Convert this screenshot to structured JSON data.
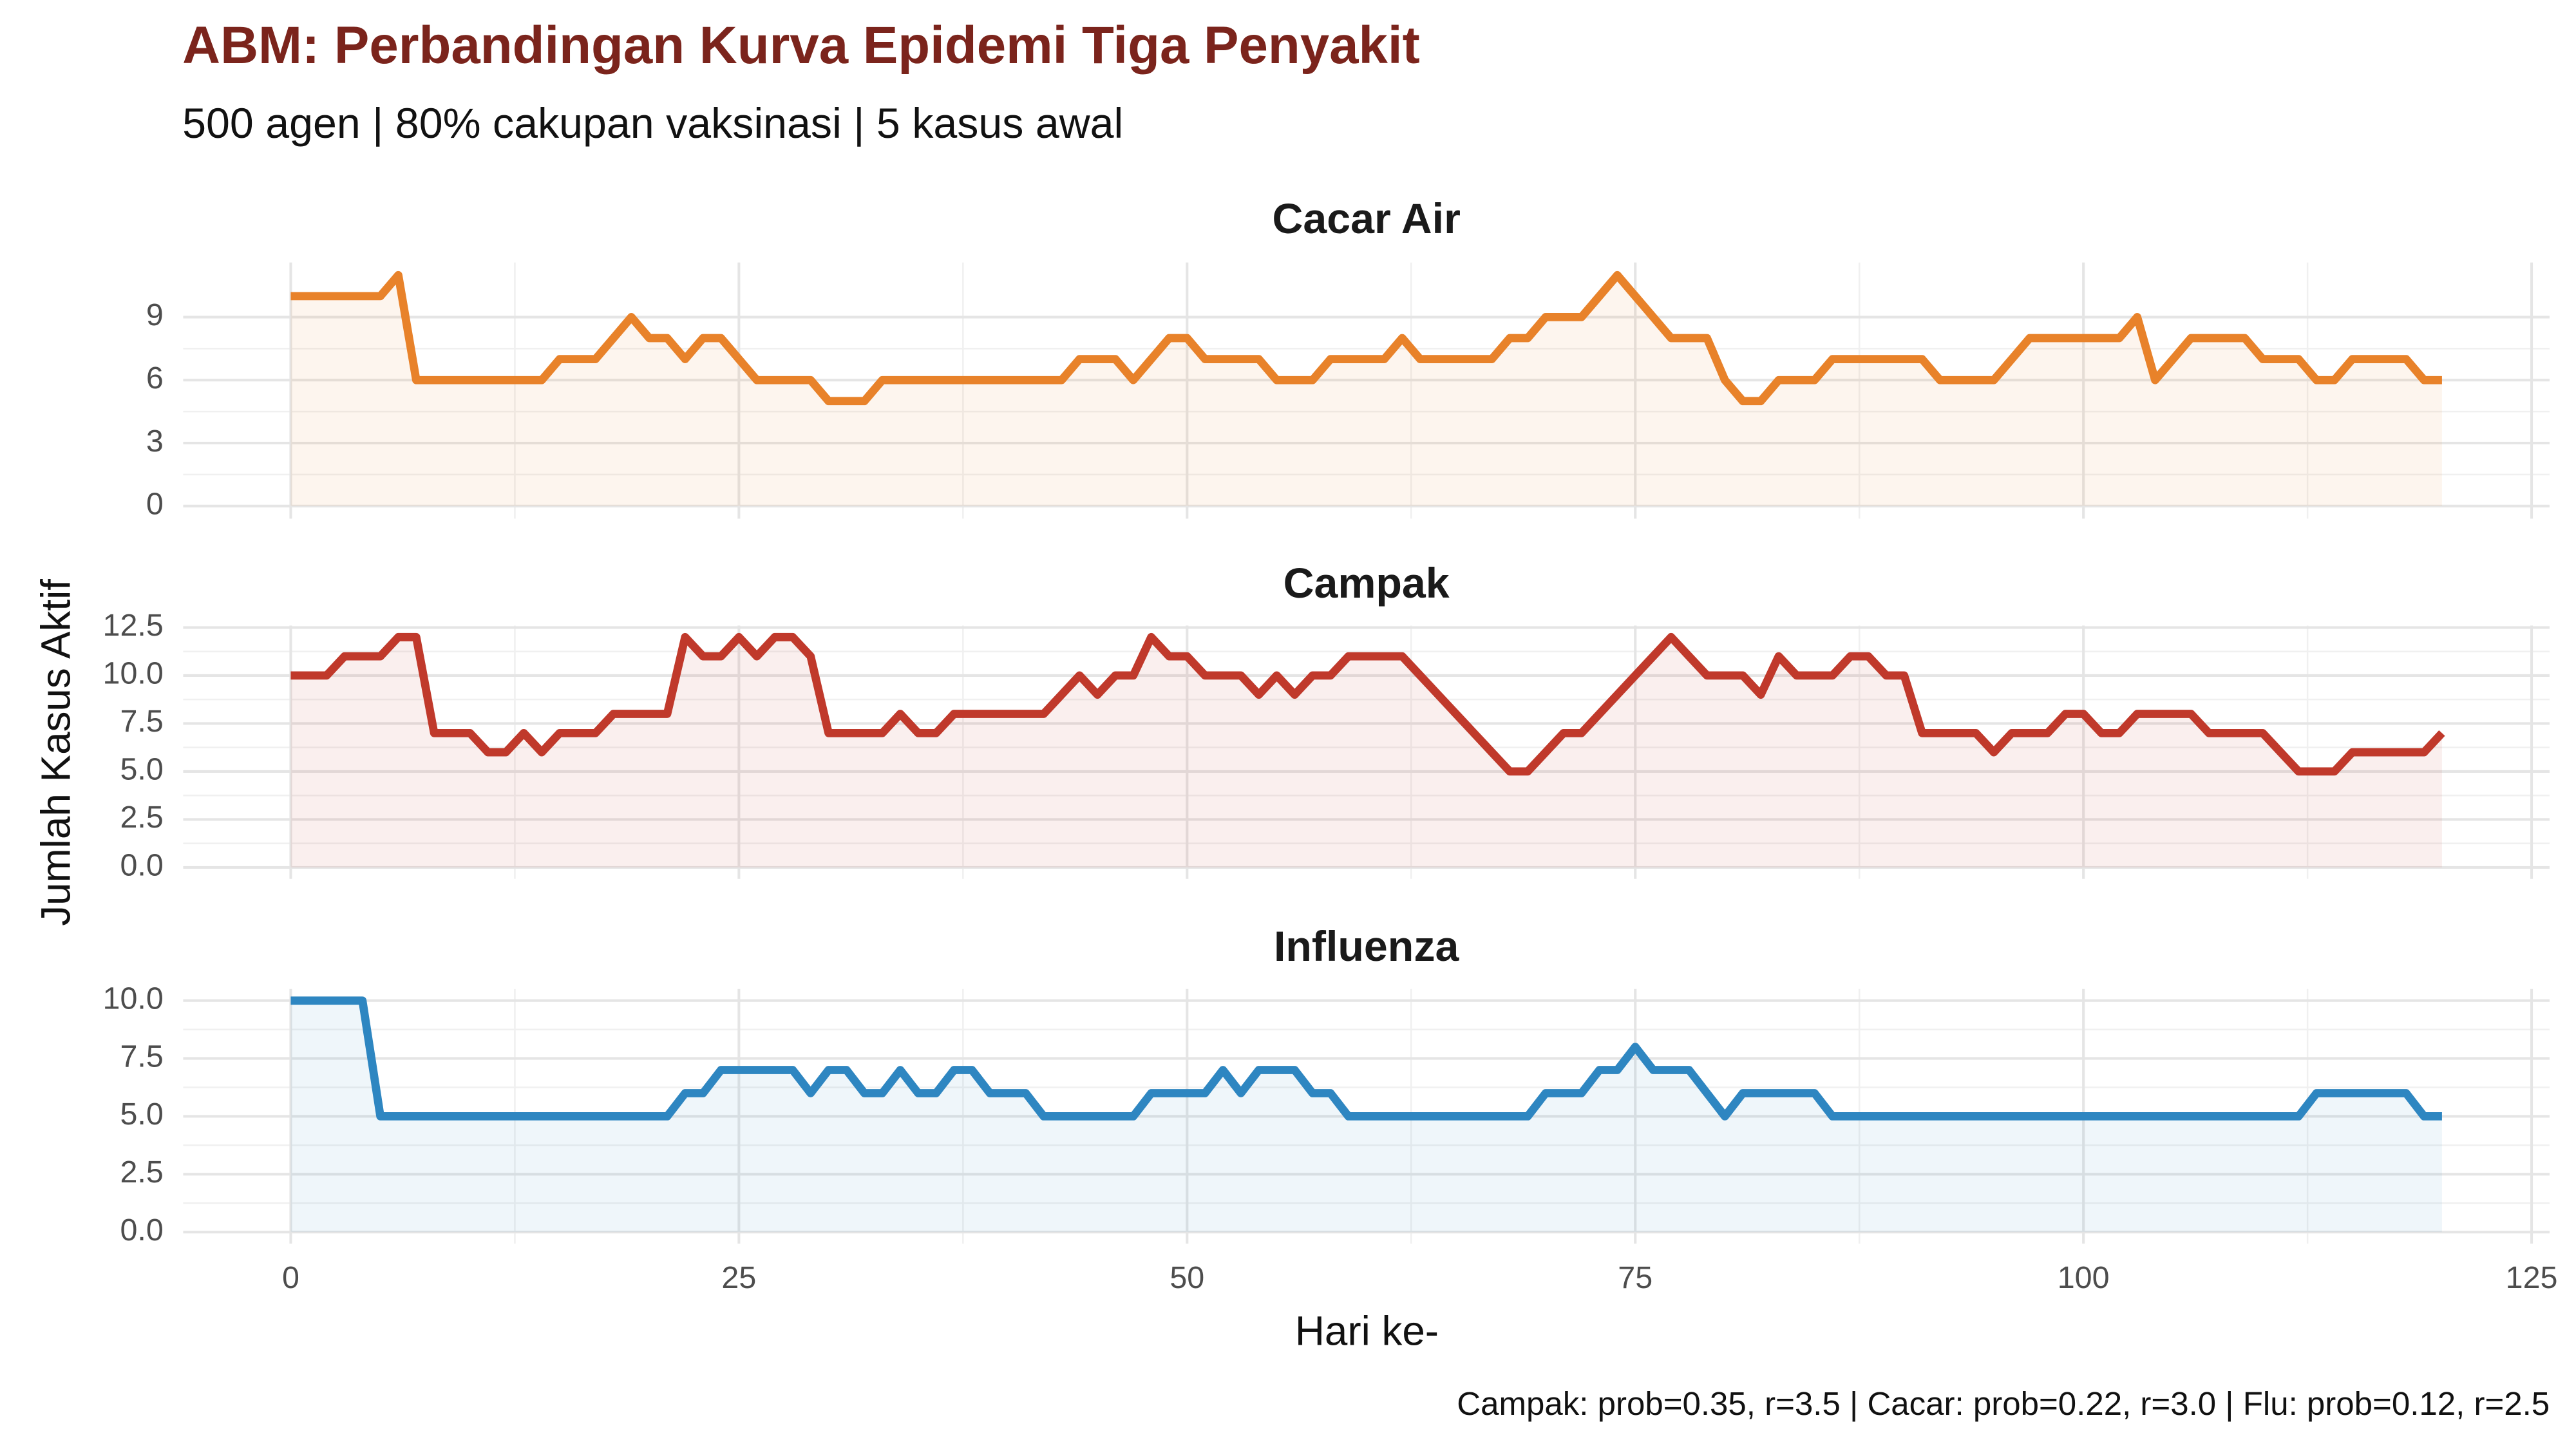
{
  "title": "ABM: Perbandingan Kurva Epidemi Tiga Penyakit",
  "subtitle": "500 agen | 80% cakupan vaksinasi | 5 kasus awal",
  "x_label": "Hari ke-",
  "y_label": "Jumlah Kasus Aktif",
  "caption": "Campak: prob=0.35, r=3.5 | Cacar: prob=0.22, r=3.0 | Flu: prob=0.12, r=2.5",
  "chart_data": [
    {
      "type": "line",
      "title": "Cacar Air",
      "color": "#e8822a",
      "x": [
        0,
        1,
        2,
        3,
        4,
        5,
        6,
        7,
        8,
        9,
        10,
        11,
        12,
        13,
        14,
        15,
        16,
        17,
        18,
        19,
        20,
        21,
        22,
        23,
        24,
        25,
        26,
        27,
        28,
        29,
        30,
        31,
        32,
        33,
        34,
        35,
        36,
        37,
        38,
        39,
        40,
        41,
        42,
        43,
        44,
        45,
        46,
        47,
        48,
        49,
        50,
        51,
        52,
        53,
        54,
        55,
        56,
        57,
        58,
        59,
        60,
        61,
        62,
        63,
        64,
        65,
        66,
        67,
        68,
        69,
        70,
        71,
        72,
        73,
        74,
        75,
        76,
        77,
        78,
        79,
        80,
        81,
        82,
        83,
        84,
        85,
        86,
        87,
        88,
        89,
        90,
        91,
        92,
        93,
        94,
        95,
        96,
        97,
        98,
        99,
        100,
        101,
        102,
        103,
        104,
        105,
        106,
        107,
        108,
        109,
        110,
        111,
        112,
        113,
        114,
        115,
        116,
        117,
        118,
        119,
        120
      ],
      "values": [
        10,
        10,
        10,
        10,
        10,
        10,
        11,
        6,
        6,
        6,
        6,
        6,
        6,
        6,
        6,
        7,
        7,
        7,
        8,
        9,
        8,
        8,
        7,
        8,
        8,
        7,
        6,
        6,
        6,
        6,
        5,
        5,
        5,
        6,
        6,
        6,
        6,
        6,
        6,
        6,
        6,
        6,
        6,
        6,
        7,
        7,
        7,
        6,
        7,
        8,
        8,
        7,
        7,
        7,
        7,
        6,
        6,
        6,
        7,
        7,
        7,
        7,
        8,
        7,
        7,
        7,
        7,
        7,
        8,
        8,
        9,
        9,
        9,
        10,
        11,
        10,
        9,
        8,
        8,
        8,
        6,
        5,
        5,
        6,
        6,
        6,
        7,
        7,
        7,
        7,
        7,
        7,
        6,
        6,
        6,
        6,
        7,
        8,
        8,
        8,
        8,
        8,
        8,
        9,
        6,
        7,
        8,
        8,
        8,
        8,
        7,
        7,
        7,
        6,
        6,
        7,
        7,
        7,
        7,
        6,
        6
      ],
      "xlim": [
        -6,
        126
      ],
      "xticks": [
        0,
        25,
        50,
        75,
        100,
        125
      ],
      "ylim": [
        -0.6,
        11.6
      ],
      "yticks": [
        0,
        3,
        6,
        9
      ],
      "grid": true
    },
    {
      "type": "line",
      "title": "Campak",
      "color": "#c0392b",
      "x": [
        0,
        1,
        2,
        3,
        4,
        5,
        6,
        7,
        8,
        9,
        10,
        11,
        12,
        13,
        14,
        15,
        16,
        17,
        18,
        19,
        20,
        21,
        22,
        23,
        24,
        25,
        26,
        27,
        28,
        29,
        30,
        31,
        32,
        33,
        34,
        35,
        36,
        37,
        38,
        39,
        40,
        41,
        42,
        43,
        44,
        45,
        46,
        47,
        48,
        49,
        50,
        51,
        52,
        53,
        54,
        55,
        56,
        57,
        58,
        59,
        60,
        61,
        62,
        63,
        64,
        65,
        66,
        67,
        68,
        69,
        70,
        71,
        72,
        73,
        74,
        75,
        76,
        77,
        78,
        79,
        80,
        81,
        82,
        83,
        84,
        85,
        86,
        87,
        88,
        89,
        90,
        91,
        92,
        93,
        94,
        95,
        96,
        97,
        98,
        99,
        100,
        101,
        102,
        103,
        104,
        105,
        106,
        107,
        108,
        109,
        110,
        111,
        112,
        113,
        114,
        115,
        116,
        117,
        118,
        119,
        120
      ],
      "values": [
        10,
        10,
        10,
        11,
        11,
        11,
        12,
        12,
        7,
        7,
        7,
        6,
        6,
        7,
        6,
        7,
        7,
        7,
        8,
        8,
        8,
        8,
        12,
        11,
        11,
        12,
        11,
        12,
        12,
        11,
        7,
        7,
        7,
        7,
        8,
        7,
        7,
        8,
        8,
        8,
        8,
        8,
        8,
        9,
        10,
        9,
        10,
        10,
        12,
        11,
        11,
        10,
        10,
        10,
        9,
        10,
        9,
        10,
        10,
        11,
        11,
        11,
        11,
        10,
        9,
        8,
        7,
        6,
        5,
        5,
        6,
        7,
        7,
        8,
        9,
        10,
        11,
        12,
        11,
        10,
        10,
        10,
        9,
        11,
        10,
        10,
        10,
        11,
        11,
        10,
        10,
        7,
        7,
        7,
        7,
        6,
        7,
        7,
        7,
        8,
        8,
        7,
        7,
        8,
        8,
        8,
        8,
        7,
        7,
        7,
        7,
        6,
        5,
        5,
        5,
        6,
        6,
        6,
        6,
        6,
        7
      ],
      "xlim": [
        -6,
        126
      ],
      "xticks": [
        0,
        25,
        50,
        75,
        100,
        125
      ],
      "ylim": [
        -0.6,
        12.6
      ],
      "yticks": [
        {
          "value": 0,
          "label": "0.0"
        },
        {
          "value": 2.5,
          "label": "2.5"
        },
        {
          "value": 5,
          "label": "5.0"
        },
        {
          "value": 7.5,
          "label": "7.5"
        },
        {
          "value": 10,
          "label": "10.0"
        },
        {
          "value": 12.5,
          "label": "12.5"
        }
      ],
      "grid": true
    },
    {
      "type": "line",
      "title": "Influenza",
      "color": "#2e86c1",
      "x": [
        0,
        1,
        2,
        3,
        4,
        5,
        6,
        7,
        8,
        9,
        10,
        11,
        12,
        13,
        14,
        15,
        16,
        17,
        18,
        19,
        20,
        21,
        22,
        23,
        24,
        25,
        26,
        27,
        28,
        29,
        30,
        31,
        32,
        33,
        34,
        35,
        36,
        37,
        38,
        39,
        40,
        41,
        42,
        43,
        44,
        45,
        46,
        47,
        48,
        49,
        50,
        51,
        52,
        53,
        54,
        55,
        56,
        57,
        58,
        59,
        60,
        61,
        62,
        63,
        64,
        65,
        66,
        67,
        68,
        69,
        70,
        71,
        72,
        73,
        74,
        75,
        76,
        77,
        78,
        79,
        80,
        81,
        82,
        83,
        84,
        85,
        86,
        87,
        88,
        89,
        90,
        91,
        92,
        93,
        94,
        95,
        96,
        97,
        98,
        99,
        100,
        101,
        102,
        103,
        104,
        105,
        106,
        107,
        108,
        109,
        110,
        111,
        112,
        113,
        114,
        115,
        116,
        117,
        118,
        119,
        120
      ],
      "values": [
        10,
        10,
        10,
        10,
        10,
        5,
        5,
        5,
        5,
        5,
        5,
        5,
        5,
        5,
        5,
        5,
        5,
        5,
        5,
        5,
        5,
        5,
        6,
        6,
        7,
        7,
        7,
        7,
        7,
        6,
        7,
        7,
        6,
        6,
        7,
        6,
        6,
        7,
        7,
        6,
        6,
        6,
        5,
        5,
        5,
        5,
        5,
        5,
        6,
        6,
        6,
        6,
        7,
        6,
        7,
        7,
        7,
        6,
        6,
        5,
        5,
        5,
        5,
        5,
        5,
        5,
        5,
        5,
        5,
        5,
        6,
        6,
        6,
        7,
        7,
        8,
        7,
        7,
        7,
        6,
        5,
        6,
        6,
        6,
        6,
        6,
        5,
        5,
        5,
        5,
        5,
        5,
        5,
        5,
        5,
        5,
        5,
        5,
        5,
        5,
        5,
        5,
        5,
        5,
        5,
        5,
        5,
        5,
        5,
        5,
        5,
        5,
        5,
        6,
        6,
        6,
        6,
        6,
        6,
        5,
        5
      ],
      "xlim": [
        -6,
        126
      ],
      "xticks": [
        0,
        25,
        50,
        75,
        100,
        125
      ],
      "ylim": [
        -0.5,
        10.5
      ],
      "yticks": [
        {
          "value": 0,
          "label": "0.0"
        },
        {
          "value": 2.5,
          "label": "2.5"
        },
        {
          "value": 5,
          "label": "5.0"
        },
        {
          "value": 7.5,
          "label": "7.5"
        },
        {
          "value": 10,
          "label": "10.0"
        }
      ],
      "grid": true
    }
  ]
}
